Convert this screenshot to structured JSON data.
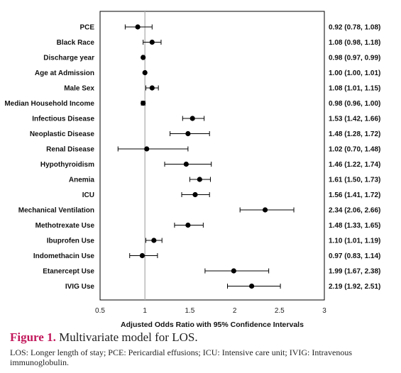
{
  "chart_data": {
    "type": "forest",
    "xlabel": "Adjusted Odds Ratio with 95% Confidence Intervals",
    "xlim": [
      0.5,
      3
    ],
    "xticks": [
      "0.5",
      "1",
      "1.5",
      "2",
      "2.5",
      "3"
    ],
    "reference_line": 1,
    "rows": [
      {
        "label": "PCE",
        "or": 0.92,
        "lo": 0.78,
        "hi": 1.08,
        "text": "0.92 (0.78, 1.08)"
      },
      {
        "label": "Black Race",
        "or": 1.08,
        "lo": 0.98,
        "hi": 1.18,
        "text": "1.08 (0.98, 1.18)"
      },
      {
        "label": "Discharge year",
        "or": 0.98,
        "lo": 0.97,
        "hi": 0.99,
        "text": "0.98 (0.97, 0.99)"
      },
      {
        "label": "Age at Admission",
        "or": 1.0,
        "lo": 1.0,
        "hi": 1.01,
        "text": "1.00 (1.00, 1.01)"
      },
      {
        "label": "Male  Sex",
        "or": 1.08,
        "lo": 1.01,
        "hi": 1.15,
        "text": "1.08 (1.01, 1.15)"
      },
      {
        "label": "Median Household Income",
        "or": 0.98,
        "lo": 0.96,
        "hi": 1.0,
        "text": "0.98 (0.96, 1.00)"
      },
      {
        "label": "Infectious Disease",
        "or": 1.53,
        "lo": 1.42,
        "hi": 1.66,
        "text": "1.53 (1.42, 1.66)"
      },
      {
        "label": "Neoplastic Disease",
        "or": 1.48,
        "lo": 1.28,
        "hi": 1.72,
        "text": "1.48 (1.28, 1.72)"
      },
      {
        "label": "Renal Disease",
        "or": 1.02,
        "lo": 0.7,
        "hi": 1.48,
        "text": "1.02 (0.70, 1.48)"
      },
      {
        "label": "Hypothyroidism",
        "or": 1.46,
        "lo": 1.22,
        "hi": 1.74,
        "text": "1.46 (1.22, 1.74)"
      },
      {
        "label": "Anemia",
        "or": 1.61,
        "lo": 1.5,
        "hi": 1.73,
        "text": "1.61 (1.50, 1.73)"
      },
      {
        "label": "ICU",
        "or": 1.56,
        "lo": 1.41,
        "hi": 1.72,
        "text": "1.56 (1.41, 1.72)"
      },
      {
        "label": "Mechanical Ventilation",
        "or": 2.34,
        "lo": 2.06,
        "hi": 2.66,
        "text": "2.34 (2.06, 2.66)"
      },
      {
        "label": "Methotrexate Use",
        "or": 1.48,
        "lo": 1.33,
        "hi": 1.65,
        "text": "1.48 (1.33, 1.65)"
      },
      {
        "label": "Ibuprofen Use",
        "or": 1.1,
        "lo": 1.01,
        "hi": 1.19,
        "text": "1.10 (1.01, 1.19)"
      },
      {
        "label": "Indomethacin Use",
        "or": 0.97,
        "lo": 0.83,
        "hi": 1.14,
        "text": "0.97 (0.83, 1.14)"
      },
      {
        "label": "Etanercept Use",
        "or": 1.99,
        "lo": 1.67,
        "hi": 2.38,
        "text": "1.99 (1.67, 2.38)"
      },
      {
        "label": "IVIG Use",
        "or": 2.19,
        "lo": 1.92,
        "hi": 2.51,
        "text": "2.19 (1.92, 2.51)"
      }
    ]
  },
  "caption": {
    "figure_number": "Figure 1.",
    "title": " Multivariate model for LOS.",
    "note": "LOS: Longer length of stay; PCE: Pericardial effusions; ICU: Intensive care unit; IVIG: Intravenous immunoglobulin."
  },
  "colors": {
    "marker": "#000000",
    "reference_line": "#b0b0b0",
    "frame": "#000000",
    "figure_number": "#c2185b"
  }
}
